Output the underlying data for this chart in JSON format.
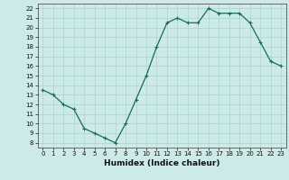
{
  "x": [
    0,
    1,
    2,
    3,
    4,
    5,
    6,
    7,
    8,
    9,
    10,
    11,
    12,
    13,
    14,
    15,
    16,
    17,
    18,
    19,
    20,
    21,
    22,
    23
  ],
  "y": [
    13.5,
    13.0,
    12.0,
    11.5,
    9.5,
    9.0,
    8.5,
    8.0,
    10.0,
    12.5,
    15.0,
    18.0,
    20.5,
    21.0,
    20.5,
    20.5,
    22.0,
    21.5,
    21.5,
    21.5,
    20.5,
    18.5,
    16.5,
    16.0
  ],
  "line_color": "#1a6b5a",
  "marker": "+",
  "marker_size": 3,
  "bg_color": "#cceae7",
  "grid_color": "#aad4d0",
  "xlabel": "Humidex (Indice chaleur)",
  "xlim": [
    -0.5,
    23.5
  ],
  "ylim": [
    7.5,
    22.5
  ],
  "yticks": [
    8,
    9,
    10,
    11,
    12,
    13,
    14,
    15,
    16,
    17,
    18,
    19,
    20,
    21,
    22
  ],
  "xticks": [
    0,
    1,
    2,
    3,
    4,
    5,
    6,
    7,
    8,
    9,
    10,
    11,
    12,
    13,
    14,
    15,
    16,
    17,
    18,
    19,
    20,
    21,
    22,
    23
  ],
  "tick_fontsize": 5.0,
  "xlabel_fontsize": 6.5,
  "tick_color": "#111111",
  "spine_color": "#555555",
  "line_width": 0.9,
  "marker_edge_width": 0.8
}
